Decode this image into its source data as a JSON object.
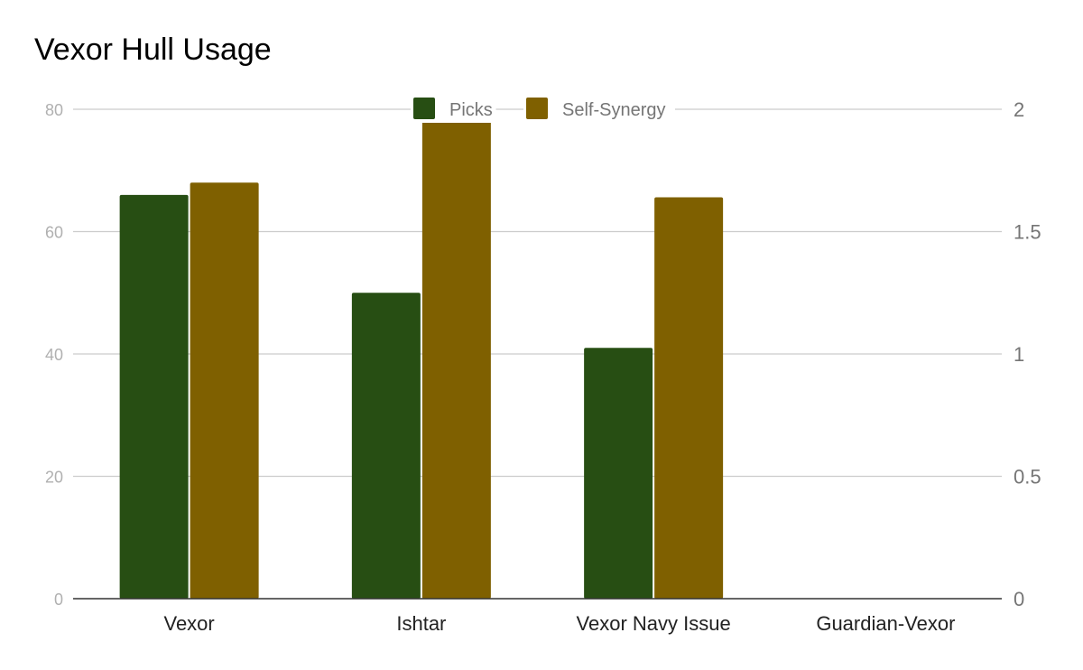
{
  "chart_data": {
    "type": "bar",
    "title": "Vexor Hull Usage",
    "categories": [
      "Vexor",
      "Ishtar",
      "Vexor Navy Issue",
      "Guardian-Vexor"
    ],
    "series": [
      {
        "name": "Picks",
        "axis": "left",
        "color": "#274e13",
        "values": [
          66,
          50,
          41,
          0
        ]
      },
      {
        "name": "Self-Synergy",
        "axis": "right",
        "color": "#7f6000",
        "values": [
          1.7,
          1.96,
          1.64,
          0
        ]
      }
    ],
    "y_left": {
      "lim": [
        0,
        80
      ],
      "ticks": [
        "0",
        "20",
        "40",
        "60",
        "80"
      ]
    },
    "y_right": {
      "lim": [
        0,
        2
      ],
      "ticks": [
        "0",
        "0.5",
        "1",
        "1.5",
        "2"
      ]
    },
    "grid": true,
    "legend_position": "top-center"
  }
}
